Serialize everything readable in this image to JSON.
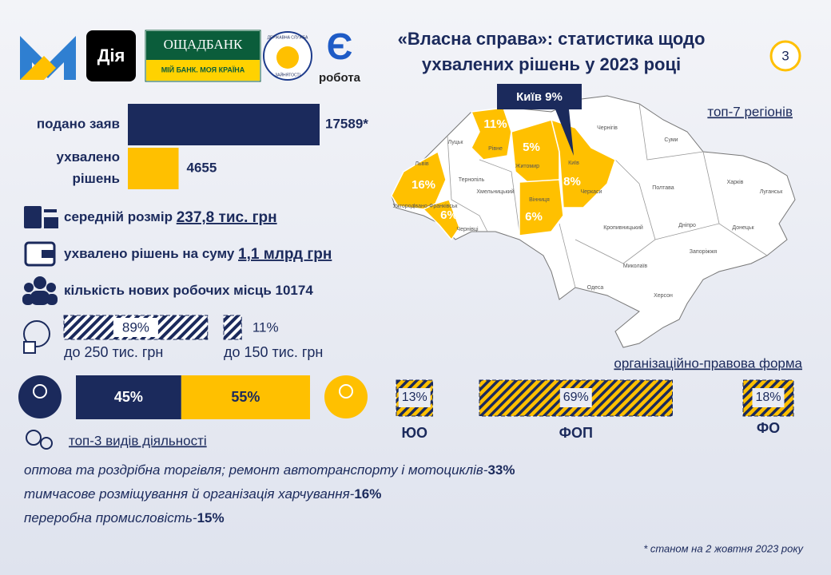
{
  "header": {
    "title_lines": [
      "«Власна справа»: статистика щодо",
      "ухвалених рішень у 2023 році"
    ],
    "page_number": "3"
  },
  "logos": {
    "diia": "Дія",
    "bank_name": "ОЩАДБАНК",
    "bank_slogan": "МІЙ БАНК. МОЯ КРАЇНА",
    "employment_service": [
      "ДЕРЖАВНА СЛУЖБА",
      "ЗАЙНЯТОСТІ"
    ],
    "ye_letter": "Є",
    "ye_word": "робота"
  },
  "applications": {
    "bars": [
      {
        "label_lines": [
          "подано заяв"
        ],
        "value": 17589,
        "value_label": "17589*"
      },
      {
        "label_lines": [
          "ухвалено",
          "рішень"
        ],
        "value": 4655
      }
    ]
  },
  "stats": [
    {
      "text": "середній розмір ",
      "highlight": "237,8 тис. грн"
    },
    {
      "text": "ухвалено рішень на суму ",
      "highlight": "1,1 млрд грн"
    },
    {
      "text": "кількість нових робочих місць ",
      "value": 10174
    }
  ],
  "loan_size": [
    {
      "value": 89,
      "value_label": "89%",
      "caption": "до 250 тис. грн"
    },
    {
      "value": 11,
      "value_label": "11%",
      "caption": "до 150 тис. грн"
    }
  ],
  "gender": [
    {
      "value": 45,
      "value_label": "45%"
    },
    {
      "value": 55,
      "value_label": "55%"
    }
  ],
  "org_form": {
    "title": "організаційно-правова форма",
    "items": [
      {
        "name": "ЮО",
        "value": 13,
        "value_label": "13%"
      },
      {
        "name": "ФОП",
        "value": 69,
        "value_label": "69%"
      },
      {
        "name": "ФО",
        "value": 18,
        "value_label": "18%"
      }
    ]
  },
  "map": {
    "title": "топ-7 регіонів",
    "callout": "Київ 9%",
    "region_shares": [
      "16%",
      "6%",
      "11%",
      "5%",
      "6%",
      "8%"
    ],
    "region_names": [
      "Луцьк",
      "Рівне",
      "Житомир",
      "Київ",
      "Чернігів",
      "Суми",
      "Харків",
      "Полтава",
      "Луганськ",
      "Львів",
      "Ужгород",
      "Івано-Франківськ",
      "Тернопіль",
      "Хмельницький",
      "Чернівці",
      "Вінниця",
      "Черкаси",
      "Кропивницький",
      "Дніпро",
      "Донецьк",
      "Запоріжжя",
      "Миколаїв",
      "Херсон",
      "Одеса"
    ]
  },
  "activities": {
    "title": "топ-3 видів діяльності",
    "items": [
      {
        "text": "оптова та роздрібна торгівля; ремонт автотранспорту і мотоциклів-",
        "share": "33%"
      },
      {
        "text": "тимчасове розміщування й організація харчування-",
        "share": "16%"
      },
      {
        "text": "переробна промисловість-",
        "share": "15%"
      }
    ]
  },
  "footnote": "* станом на 2 жовтня 2023 року"
}
